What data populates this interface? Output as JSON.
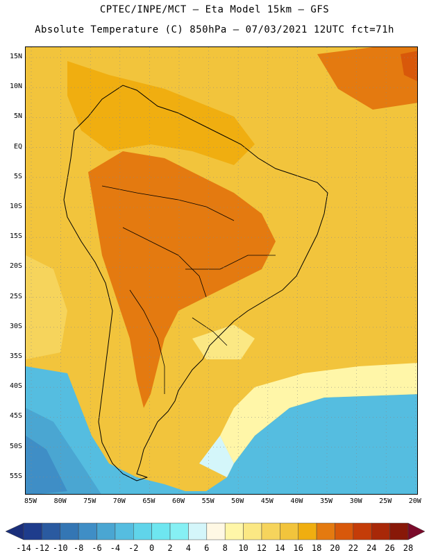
{
  "header": {
    "line1": "CPTEC/INPE/MCT –  Eta Model 15km – GFS",
    "line2": "Absolute Temperature (C) 850hPa – 07/03/2021 12UTC fct=71h"
  },
  "map": {
    "lat_labels": [
      "15N",
      "10N",
      "5N",
      "EQ",
      "5S",
      "10S",
      "15S",
      "20S",
      "25S",
      "30S",
      "35S",
      "40S",
      "45S",
      "50S",
      "55S"
    ],
    "lon_labels": [
      "85W",
      "80W",
      "75W",
      "70W",
      "65W",
      "60W",
      "55W",
      "50W",
      "45W",
      "40W",
      "35W",
      "30W",
      "25W",
      "20W"
    ],
    "region": "South America"
  },
  "colorbar": {
    "labels": [
      "-14",
      "-12",
      "-10",
      "-8",
      "-6",
      "-4",
      "-2",
      "0",
      "2",
      "4",
      "6",
      "8",
      "10",
      "12",
      "14",
      "16",
      "18",
      "20",
      "22",
      "24",
      "26",
      "28"
    ],
    "colors": [
      "#1e3c8c",
      "#2a5aa0",
      "#3476b4",
      "#3f8ec6",
      "#4aa6d2",
      "#55bde0",
      "#60d4ea",
      "#6ee6f0",
      "#86f0f4",
      "#d4f6fa",
      "#fff8e4",
      "#fff6a8",
      "#fbe884",
      "#f6d45c",
      "#f2c43c",
      "#f0ae10",
      "#e47a10",
      "#d8580a",
      "#c43c08",
      "#a82808",
      "#881808"
    ]
  }
}
